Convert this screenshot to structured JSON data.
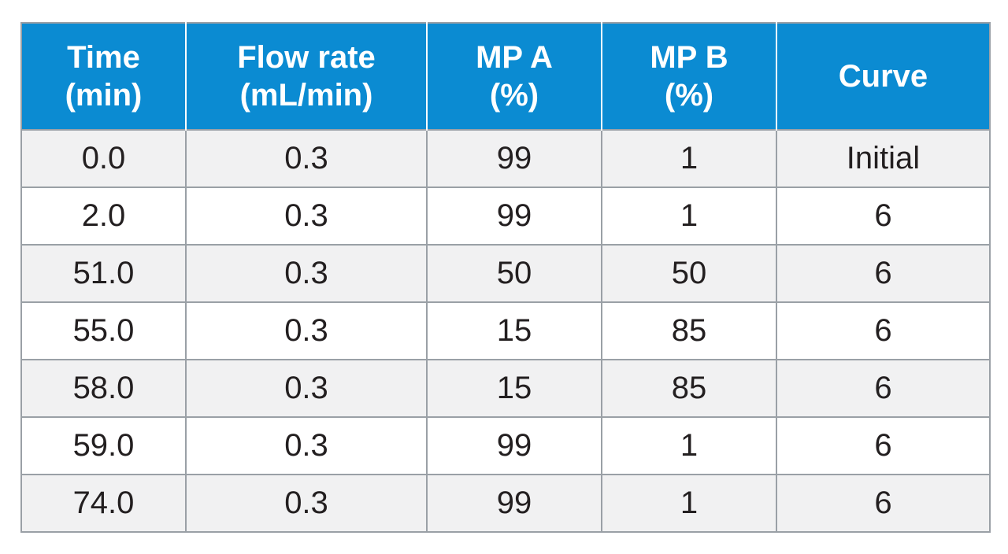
{
  "table": {
    "headers": [
      [
        "Time",
        "(min)"
      ],
      [
        "Flow rate",
        "(mL/min)"
      ],
      [
        "MP A",
        "(%)"
      ],
      [
        "MP B",
        "(%)"
      ],
      [
        "Curve"
      ]
    ],
    "rows": [
      [
        "0.0",
        "0.3",
        "99",
        "1",
        "Initial"
      ],
      [
        "2.0",
        "0.3",
        "99",
        "1",
        "6"
      ],
      [
        "51.0",
        "0.3",
        "50",
        "50",
        "6"
      ],
      [
        "55.0",
        "0.3",
        "15",
        "85",
        "6"
      ],
      [
        "58.0",
        "0.3",
        "15",
        "85",
        "6"
      ],
      [
        "59.0",
        "0.3",
        "99",
        "1",
        "6"
      ],
      [
        "74.0",
        "0.3",
        "99",
        "1",
        "6"
      ]
    ]
  },
  "colors": {
    "header_bg": "#0b8bd2",
    "header_text": "#ffffff",
    "row_alt_bg": "#f1f1f2",
    "border": "#9aa0a6"
  }
}
